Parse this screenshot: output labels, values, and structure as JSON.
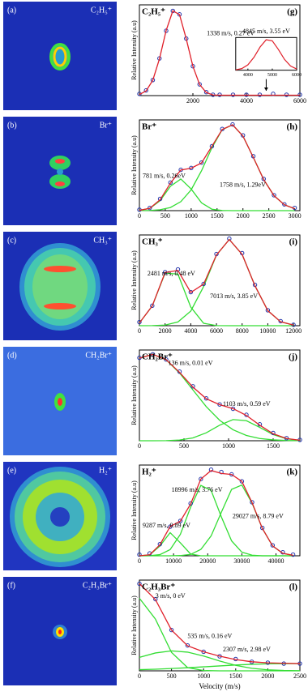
{
  "images": [
    {
      "panel": "(a)",
      "label": "C₂H₅⁺"
    },
    {
      "panel": "(b)",
      "label": "Br⁺"
    },
    {
      "panel": "(c)",
      "label": "CH₃⁺"
    },
    {
      "panel": "(d)",
      "label": "CH₂Br⁺"
    },
    {
      "panel": "(e)",
      "label": "H₂⁺"
    },
    {
      "panel": "(f)",
      "label": "C₂H₃Br⁺"
    }
  ],
  "chart_data": [
    {
      "type": "line",
      "title": "C₂H₅⁺",
      "panel": "(g)",
      "ylabel": "Relative Intensity (a.u)",
      "xlim": [
        0,
        6000
      ],
      "xticks": [
        2000,
        4000,
        6000
      ],
      "ylim": [
        0,
        1.05
      ],
      "x": [
        0,
        250,
        500,
        750,
        1000,
        1250,
        1500,
        1750,
        2000,
        2250,
        2500,
        2750,
        3000,
        3500,
        4000,
        4500,
        5000,
        5500,
        6000
      ],
      "series": [
        {
          "style": "points",
          "color": "#2233aa",
          "values": [
            0.02,
            0.06,
            0.18,
            0.43,
            0.75,
            0.98,
            0.94,
            0.66,
            0.34,
            0.13,
            0.04,
            0.01,
            0.01,
            0.01,
            0.01,
            0.01,
            0.02,
            0.01,
            0.01
          ]
        },
        {
          "style": "line",
          "color": "#e0202a",
          "values": [
            0.012,
            0.054,
            0.177,
            0.426,
            0.754,
            0.981,
            0.937,
            0.658,
            0.339,
            0.128,
            0.036,
            0.007,
            0.005,
            0.005,
            0.005,
            0.005,
            0.005,
            0.005,
            0.005
          ]
        }
      ],
      "annotations": [
        "1338 m/s, 0.27 eV"
      ],
      "inset": {
        "annotation": "4845 m/s, 3.55 eV",
        "xlim": [
          3500,
          6000
        ],
        "xticks": [
          4000,
          5000,
          6000
        ],
        "ylim": [
          0,
          1.05
        ],
        "color": "#e0202a",
        "x": [
          3500,
          3750,
          4000,
          4250,
          4500,
          4750,
          5000,
          5250,
          5500,
          5750,
          6000
        ],
        "values": [
          0.011,
          0.052,
          0.172,
          0.417,
          0.745,
          0.978,
          0.943,
          0.667,
          0.347,
          0.132,
          0.037
        ]
      }
    },
    {
      "type": "line",
      "title": "Br⁺",
      "panel": "(h)",
      "ylabel": "Relative Intensity (a.u)",
      "xlim": [
        0,
        3100
      ],
      "xticks": [
        0,
        500,
        1000,
        1500,
        2000,
        2500,
        3000
      ],
      "ylim": [
        0,
        1.0
      ],
      "x": [
        0,
        200,
        400,
        600,
        800,
        1000,
        1200,
        1400,
        1600,
        1800,
        2000,
        2200,
        2400,
        2600,
        2800,
        3000
      ],
      "series": [
        {
          "style": "line",
          "color": "#33dd33",
          "values": [
            0.003,
            0.024,
            0.11,
            0.269,
            0.349,
            0.238,
            0.086,
            0.016,
            0.002,
            0,
            0,
            0,
            0,
            0,
            0,
            0
          ]
        },
        {
          "style": "line",
          "color": "#33dd33",
          "values": [
            0.001,
            0.002,
            0.01,
            0.035,
            0.099,
            0.23,
            0.44,
            0.693,
            0.893,
            0.946,
            0.822,
            0.587,
            0.343,
            0.165,
            0.065,
            0.021
          ]
        },
        {
          "style": "points",
          "color": "#2233aa",
          "values": [
            0.01,
            0.03,
            0.13,
            0.31,
            0.45,
            0.47,
            0.53,
            0.71,
            0.9,
            0.95,
            0.83,
            0.6,
            0.35,
            0.17,
            0.07,
            0.03
          ]
        },
        {
          "style": "line",
          "color": "#e0202a",
          "values": [
            0.004,
            0.026,
            0.12,
            0.304,
            0.448,
            0.468,
            0.526,
            0.709,
            0.895,
            0.946,
            0.822,
            0.587,
            0.343,
            0.165,
            0.065,
            0.021
          ]
        }
      ],
      "annotations": [
        "781 m/s, 0.26eV",
        "1758 m/s, 1.29eV"
      ]
    },
    {
      "type": "line",
      "title": "CH₃⁺",
      "panel": "(i)",
      "ylabel": "Relative Intensity (a.u)",
      "xlim": [
        0,
        12500
      ],
      "xticks": [
        0,
        2000,
        4000,
        6000,
        8000,
        10000,
        12000
      ],
      "ylim": [
        0,
        1.0
      ],
      "x": [
        0,
        1000,
        2000,
        3000,
        4000,
        5000,
        6000,
        7000,
        8000,
        9000,
        10000,
        11000,
        12000
      ],
      "series": [
        {
          "style": "line",
          "color": "#33dd33",
          "values": [
            0.03,
            0.217,
            0.579,
            0.568,
            0.205,
            0.027,
            0.001,
            0,
            0,
            0,
            0,
            0,
            0
          ]
        },
        {
          "style": "line",
          "color": "#33dd33",
          "values": [
            0,
            0.001,
            0.007,
            0.041,
            0.161,
            0.431,
            0.778,
            0.95,
            0.786,
            0.44,
            0.166,
            0.043,
            0.007
          ]
        },
        {
          "style": "points",
          "color": "#2233aa",
          "values": [
            0.04,
            0.22,
            0.59,
            0.62,
            0.37,
            0.46,
            0.79,
            0.96,
            0.8,
            0.45,
            0.17,
            0.05,
            0.01
          ]
        },
        {
          "style": "line",
          "color": "#e0202a",
          "values": [
            0.03,
            0.218,
            0.586,
            0.609,
            0.366,
            0.458,
            0.779,
            0.95,
            0.786,
            0.44,
            0.166,
            0.043,
            0.007
          ]
        }
      ],
      "annotations": [
        "2481 m/s, 0.48 eV",
        "7013 m/s, 3.85 eV"
      ]
    },
    {
      "type": "line",
      "title": "CH₂Br⁺",
      "panel": "(j)",
      "ylabel": "Relative Intensity (a.u)",
      "xlim": [
        0,
        1800
      ],
      "xticks": [
        0,
        500,
        1000,
        1500
      ],
      "ylim": [
        0,
        1.05
      ],
      "x": [
        0,
        150,
        300,
        450,
        600,
        750,
        900,
        1050,
        1200,
        1350,
        1500,
        1650,
        1800
      ],
      "series": [
        {
          "style": "line",
          "color": "#33dd33",
          "values": [
            0.955,
            1.0,
            0.936,
            0.784,
            0.588,
            0.394,
            0.237,
            0.127,
            0.061,
            0.026,
            0.01,
            0.003,
            0.001
          ]
        },
        {
          "style": "line",
          "color": "#33dd33",
          "values": [
            0,
            0,
            0.001,
            0.008,
            0.033,
            0.092,
            0.18,
            0.245,
            0.232,
            0.154,
            0.071,
            0.023,
            0.005
          ]
        },
        {
          "style": "points",
          "color": "#2233aa",
          "values": [
            0.96,
            1.0,
            0.94,
            0.8,
            0.63,
            0.49,
            0.42,
            0.37,
            0.3,
            0.19,
            0.09,
            0.03,
            0.01
          ]
        },
        {
          "style": "line",
          "color": "#e0202a",
          "values": [
            0.955,
            1.0,
            0.937,
            0.792,
            0.621,
            0.486,
            0.417,
            0.372,
            0.293,
            0.18,
            0.081,
            0.026,
            0.006
          ]
        }
      ],
      "annotations": [
        "136 m/s, 0.01 eV",
        "1103 m/s, 0.59 eV"
      ]
    },
    {
      "type": "line",
      "title": "H₂⁺",
      "panel": "(k)",
      "ylabel": "Relative Intensity (a.u)",
      "xlim": [
        0,
        47000
      ],
      "xticks": [
        0,
        10000,
        20000,
        30000,
        40000
      ],
      "ylim": [
        0,
        0.78
      ],
      "x": [
        0,
        3000,
        6000,
        9000,
        12000,
        15000,
        18000,
        21000,
        24000,
        27000,
        30000,
        33000,
        36000,
        39000,
        42000,
        45000
      ],
      "series": [
        {
          "style": "line",
          "color": "#33dd33",
          "values": [
            0,
            0.008,
            0.084,
            0.199,
            0.111,
            0.015,
            0,
            0,
            0,
            0,
            0,
            0,
            0,
            0,
            0,
            0
          ]
        },
        {
          "style": "line",
          "color": "#33dd33",
          "values": [
            0,
            0.001,
            0.01,
            0.053,
            0.185,
            0.418,
            0.605,
            0.562,
            0.334,
            0.128,
            0.031,
            0.005,
            0,
            0,
            0,
            0
          ]
        },
        {
          "style": "line",
          "color": "#33dd33",
          "values": [
            0,
            0,
            0,
            0,
            0.002,
            0.012,
            0.055,
            0.171,
            0.374,
            0.571,
            0.608,
            0.452,
            0.235,
            0.085,
            0.021,
            0.004
          ]
        },
        {
          "style": "points",
          "color": "#2233aa",
          "values": [
            0.01,
            0.02,
            0.1,
            0.25,
            0.3,
            0.45,
            0.66,
            0.74,
            0.72,
            0.7,
            0.64,
            0.46,
            0.24,
            0.09,
            0.03,
            0.01
          ]
        },
        {
          "style": "line",
          "color": "#e0202a",
          "values": [
            0,
            0.009,
            0.094,
            0.252,
            0.298,
            0.445,
            0.66,
            0.733,
            0.708,
            0.699,
            0.639,
            0.457,
            0.235,
            0.085,
            0.021,
            0.004
          ]
        }
      ],
      "annotations": [
        "18996 m/s, 3.76 eV",
        "9287 m/s, 0.89 eV",
        "29027 m/s, 8.79 eV"
      ]
    },
    {
      "type": "line",
      "title": "C₂H₃Br⁺",
      "panel": "(l)",
      "ylabel": "Relative Intensity (a.u)",
      "xlabel": "Velocity (m/s)",
      "xlim": [
        0,
        2500
      ],
      "xticks": [
        0,
        500,
        1000,
        1500,
        2000,
        2500
      ],
      "ylim": [
        0,
        1.0
      ],
      "x": [
        0,
        250,
        500,
        750,
        1000,
        1250,
        1500,
        1750,
        2000,
        2250,
        2500
      ],
      "series": [
        {
          "style": "line",
          "color": "#33dd33",
          "values": [
            0.8,
            0.57,
            0.203,
            0.036,
            0.003,
            0,
            0,
            0,
            0,
            0,
            0
          ]
        },
        {
          "style": "line",
          "color": "#33dd33",
          "values": [
            0.148,
            0.197,
            0.22,
            0.206,
            0.163,
            0.108,
            0.06,
            0.028,
            0.011,
            0.004,
            0.001
          ]
        },
        {
          "style": "line",
          "color": "#33dd33",
          "values": [
            0.013,
            0.018,
            0.026,
            0.034,
            0.044,
            0.054,
            0.064,
            0.072,
            0.077,
            0.08,
            0.079
          ]
        },
        {
          "style": "points",
          "color": "#2233aa",
          "values": [
            0.96,
            0.79,
            0.45,
            0.28,
            0.21,
            0.16,
            0.13,
            0.1,
            0.09,
            0.08,
            0.08
          ]
        },
        {
          "style": "line",
          "color": "#e0202a",
          "values": [
            0.961,
            0.785,
            0.449,
            0.276,
            0.21,
            0.162,
            0.124,
            0.1,
            0.088,
            0.084,
            0.08
          ]
        }
      ],
      "annotations": [
        "3 m/s, 0 eV",
        "535 m/s, 0.16 eV",
        "2307 m/s, 2.98 eV"
      ]
    }
  ]
}
